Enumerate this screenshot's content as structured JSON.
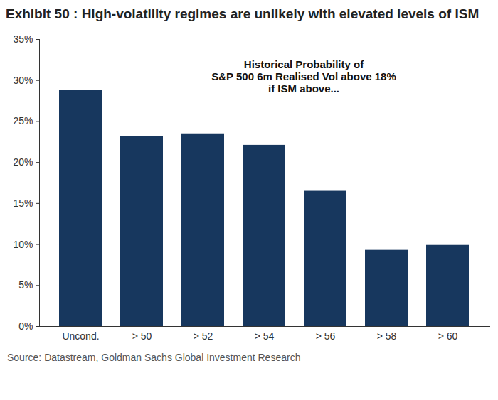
{
  "chart_data": {
    "type": "bar",
    "title": "Exhibit 50 : High-volatility regimes are unlikely with elevated levels of ISM",
    "annotation": "Historical Probability of\nS&P 500 6m Realised Vol above 18%\nif ISM above...",
    "source": "Source: Datastream, Goldman Sachs Global Investment Research",
    "categories": [
      "Uncond.",
      "> 50",
      "> 52",
      "> 54",
      "> 56",
      "> 58",
      "> 60"
    ],
    "values": [
      28.8,
      23.2,
      23.5,
      22.1,
      16.5,
      9.3,
      9.9
    ],
    "color": "#17375e",
    "ylim": [
      0,
      35
    ],
    "yticks": [
      {
        "value": 0,
        "label": "0%"
      },
      {
        "value": 5,
        "label": "5%"
      },
      {
        "value": 10,
        "label": "10%"
      },
      {
        "value": 15,
        "label": "15%"
      },
      {
        "value": 20,
        "label": "20%"
      },
      {
        "value": 25,
        "label": "25%"
      },
      {
        "value": 30,
        "label": "30%"
      },
      {
        "value": 35,
        "label": "35%"
      }
    ],
    "grid": false
  }
}
